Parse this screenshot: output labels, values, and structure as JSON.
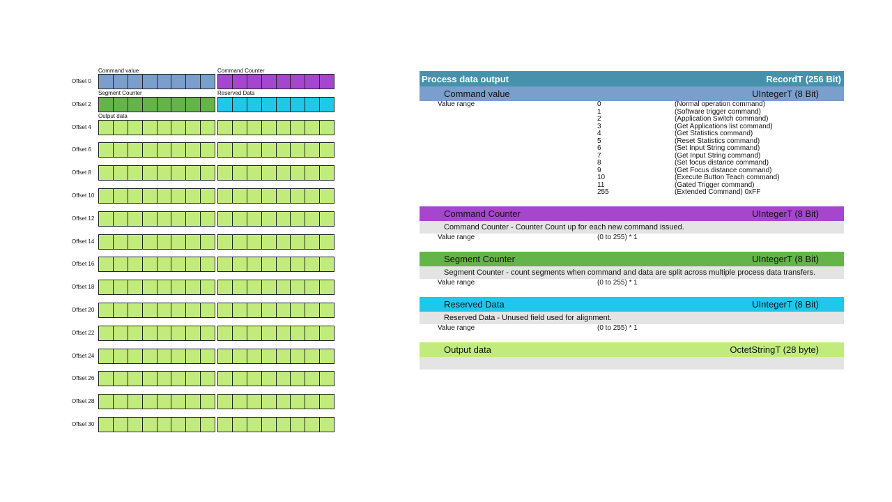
{
  "bytemap": {
    "offsets": [
      "Offset 0",
      "Offset 2",
      "Offset 4",
      "Offset 6",
      "Offset 8",
      "Offset 10",
      "Offset 12",
      "Offset 14",
      "Offset 16",
      "Offset 18",
      "Offset 20",
      "Offset 22",
      "Offset 24",
      "Offset 26",
      "Offset 28",
      "Offset 30"
    ],
    "field_labels": {
      "command_value": "Command value",
      "command_counter": "Command Counter",
      "segment_counter": "Segment Counter",
      "reserved_data": "Reserved Data",
      "output_data": "Output data"
    },
    "colors": {
      "command_value": "#7b9fcc",
      "command_counter": "#a646cf",
      "segment_counter": "#64b44a",
      "reserved_data": "#1fc7ea",
      "output_data": "#c1ec7c"
    }
  },
  "table": {
    "header": {
      "title": "Process data output",
      "type": "RecordT (256 Bit)",
      "color": "#4692ad"
    },
    "command_value": {
      "title": "Command value",
      "type": "UIntegerT (8 Bit)",
      "color": "#7b9fcc",
      "value_range_label": "Value range",
      "values": [
        {
          "v": "0",
          "t": "(Normal operation command)"
        },
        {
          "v": "1",
          "t": "(Software trigger command)"
        },
        {
          "v": "2",
          "t": "(Application Switch command)"
        },
        {
          "v": "3",
          "t": "(Get Applications list command)"
        },
        {
          "v": "4",
          "t": "(Get Statistics command)"
        },
        {
          "v": "5",
          "t": "(Reset Statistics command)"
        },
        {
          "v": "6",
          "t": "(Set Input String command)"
        },
        {
          "v": "7",
          "t": "(Get Input String command)"
        },
        {
          "v": "8",
          "t": "(Set focus distance command)"
        },
        {
          "v": "9",
          "t": "(Get Focus distance command)"
        },
        {
          "v": "10",
          "t": "(Execute Button Teach command)"
        },
        {
          "v": "11",
          "t": "(Gated Trigger command)"
        },
        {
          "v": "255",
          "t": "(Extended Command)  0xFF"
        }
      ]
    },
    "command_counter": {
      "title": "Command Counter",
      "type": "UIntegerT (8 Bit)",
      "color": "#a646cf",
      "description": "Command Counter - Counter Count up for each new command issued.",
      "value_range_label": "Value range",
      "value_range": "(0 to 255) * 1"
    },
    "segment_counter": {
      "title": "Segment Counter",
      "type": "UIntegerT (8 Bit)",
      "color": "#64b44a",
      "description": "Segment Counter - count segments when command and data are split across multiple process data transfers.",
      "value_range_label": "Value range",
      "value_range": "(0 to 255) * 1"
    },
    "reserved_data": {
      "title": "Reserved Data",
      "type": "UIntegerT (8 Bit)",
      "color": "#1fc7ea",
      "description": "Reserved Data - Unused field used for alignment.",
      "value_range_label": "Value range",
      "value_range": "(0 to 255) * 1"
    },
    "output_data": {
      "title": "Output data",
      "type": "OctetStringT (28 byte)",
      "color": "#c1ec7c",
      "description": ""
    }
  }
}
